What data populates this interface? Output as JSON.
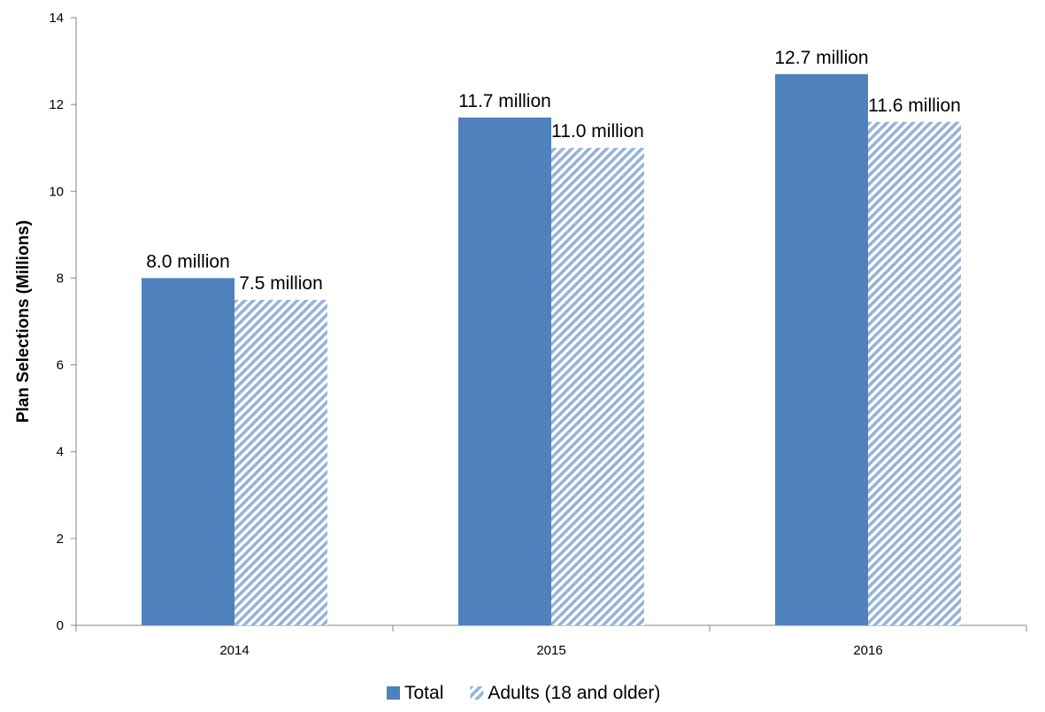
{
  "chart_data": {
    "type": "bar",
    "title": "",
    "xlabel": "",
    "ylabel": "Plan Selections (Millions)",
    "categories": [
      "2014",
      "2015",
      "2016"
    ],
    "ylim": [
      0,
      14
    ],
    "yticks": [
      0,
      2,
      4,
      6,
      8,
      10,
      12,
      14
    ],
    "grid": false,
    "legend_position": "bottom",
    "series": [
      {
        "name": "Total",
        "values": [
          8.0,
          11.7,
          12.7
        ],
        "labels": [
          "8.0 million",
          "11.7 million",
          "12.7 million"
        ],
        "color": "#4f81bd",
        "pattern": "solid"
      },
      {
        "name": "Adults (18 and older)",
        "values": [
          7.5,
          11.0,
          11.6
        ],
        "labels": [
          "7.5 million",
          "11.0 million",
          "11.6 million"
        ],
        "color": "#95b3d7",
        "pattern": "diagonal-hatch"
      }
    ]
  }
}
